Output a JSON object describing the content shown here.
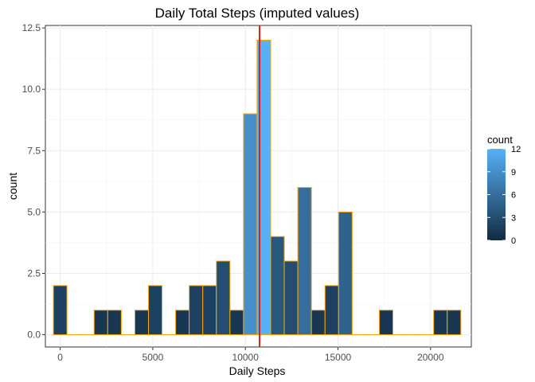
{
  "chart_data": {
    "type": "bar",
    "subtype": "histogram",
    "title": "Daily Total Steps (imputed values)",
    "xlabel": "Daily Steps",
    "ylabel": "count",
    "xlim": [
      -800,
      22200
    ],
    "ylim": [
      -0.5,
      12.6
    ],
    "x_ticks": [
      0,
      5000,
      10000,
      15000,
      20000
    ],
    "x_tick_labels": [
      "0",
      "5000",
      "10000",
      "15000",
      "20000"
    ],
    "y_ticks": [
      0,
      2.5,
      5,
      7.5,
      10,
      12.5
    ],
    "y_tick_labels": [
      "0.0",
      "2.5",
      "5.0",
      "7.5",
      "10.0",
      "12.5"
    ],
    "bin_width": 733.33,
    "bin_centers": [
      0,
      733.33,
      1466.67,
      2200,
      2933.33,
      3666.67,
      4400,
      5133.33,
      5866.67,
      6600,
      7333.33,
      8066.67,
      8800,
      9533.33,
      10266.67,
      11000,
      11733.33,
      12466.67,
      13200,
      13933.33,
      14666.67,
      15400,
      16133.33,
      16866.67,
      17600,
      18333.33,
      19066.67,
      19800,
      20533.33,
      21266.67
    ],
    "counts": [
      2,
      0,
      0,
      1,
      1,
      0,
      1,
      2,
      0,
      1,
      2,
      2,
      3,
      1,
      9,
      12,
      4,
      3,
      6,
      1,
      2,
      5,
      0,
      0,
      1,
      0,
      0,
      0,
      1,
      1
    ],
    "reference_line": {
      "x": 10766.19,
      "color": "#e41a1c"
    },
    "fill_scale": {
      "low": "#132b43",
      "high": "#56b1f7"
    },
    "bar_outline_color": "#ffa500",
    "grid": true,
    "legend": {
      "title": "count",
      "placement": "right",
      "ticks": [
        0,
        3,
        6,
        9,
        12
      ],
      "tick_labels": [
        "0",
        "3",
        "6",
        "9",
        "12"
      ]
    }
  }
}
